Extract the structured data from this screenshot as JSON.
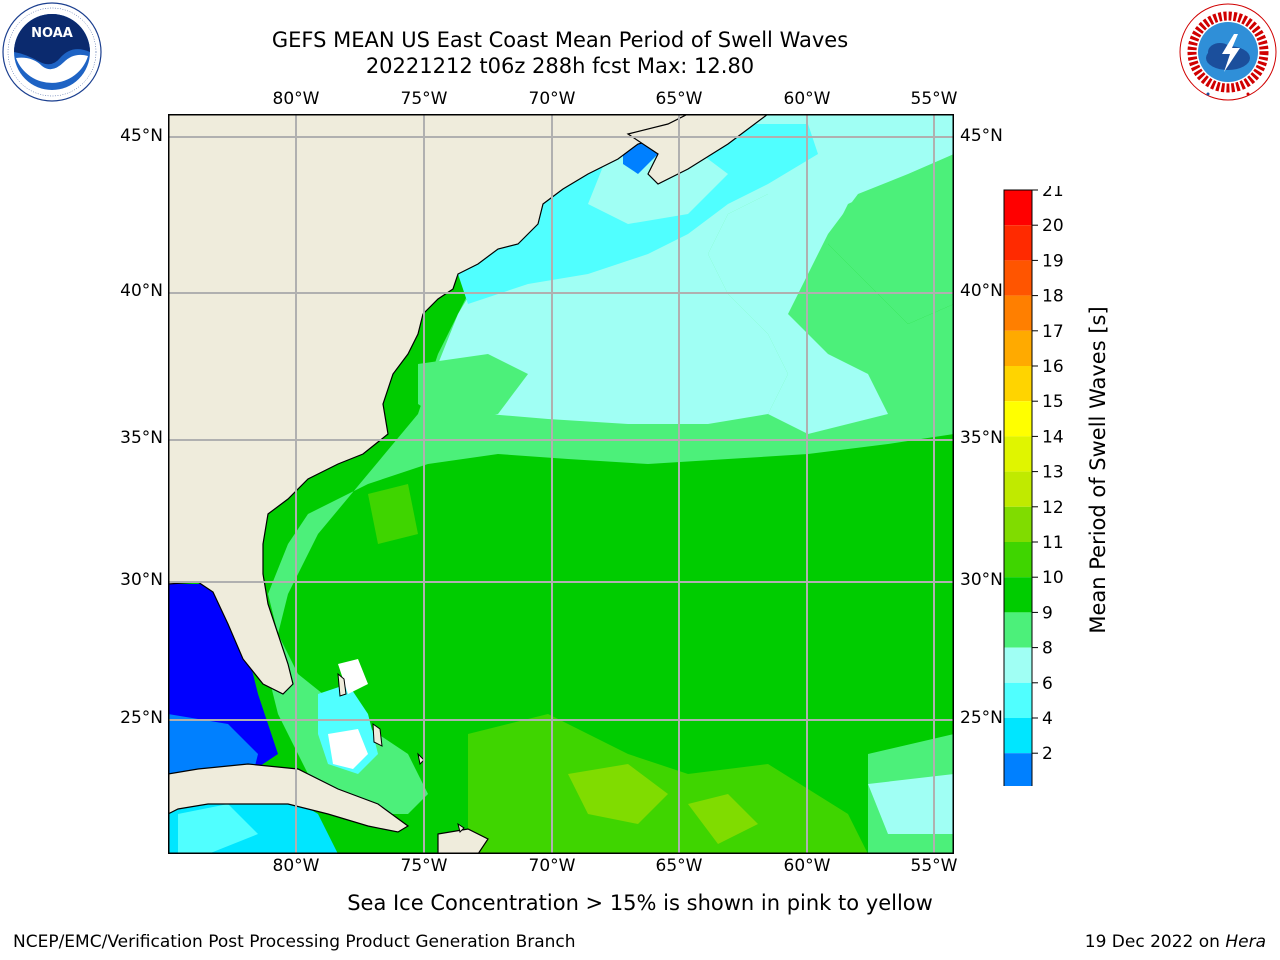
{
  "title": {
    "line1": "GEFS MEAN US East Coast Mean Period of Swell Waves",
    "line2": "20221212 t06z 288h fcst   Max: 12.80"
  },
  "logos": {
    "left": {
      "name": "NOAA",
      "ring_text": "NATIONAL OCEANIC AND ATMOSPHERIC ADMINISTRATION · U.S. DEPARTMENT OF COMMERCE"
    },
    "right": {
      "name": "NATIONAL WEATHER SERVICE"
    }
  },
  "map": {
    "lon_labels": [
      "80°W",
      "75°W",
      "70°W",
      "65°W",
      "60°W",
      "55°W"
    ],
    "lat_labels": [
      "45°N",
      "40°N",
      "35°N",
      "30°N",
      "25°N"
    ],
    "land_color": "#efecdc",
    "grid_color": "#b0b0b0",
    "ice_color": "#ffffff"
  },
  "colorbar": {
    "label": "Mean Period of Swell Waves [s]",
    "ticks": [
      "21",
      "20",
      "19",
      "18",
      "17",
      "16",
      "15",
      "14",
      "13",
      "12",
      "11",
      "10",
      "9",
      "8",
      "6",
      "4",
      "2"
    ],
    "colors": [
      "#ff0000",
      "#ff2a00",
      "#ff5500",
      "#ff7f00",
      "#ffaa00",
      "#ffd400",
      "#ffff00",
      "#e0f500",
      "#c0ea00",
      "#80dc00",
      "#3fd500",
      "#00cc00",
      "#4cf07a",
      "#a0fff4",
      "#50ffff",
      "#00e6ff",
      "#0080ff"
    ],
    "extend_color": "#0000ff"
  },
  "chart_data": {
    "type": "heatmap",
    "variable": "Mean Period of Swell Waves",
    "units": "s",
    "max": 12.8,
    "levels": [
      2,
      4,
      6,
      8,
      9,
      10,
      11,
      12,
      13,
      14,
      15,
      16,
      17,
      18,
      19,
      20,
      21
    ],
    "lon_range": [
      "85°W",
      "54°W"
    ],
    "lat_range": [
      "20°N",
      "46°N"
    ]
  },
  "notes": {
    "ice": "Sea Ice Concentration > 15% is shown in pink to yellow",
    "footer_left": "NCEP/EMC/Verification Post Processing Product Generation Branch",
    "footer_date": "19 Dec 2022 on ",
    "footer_machine": "Hera"
  }
}
